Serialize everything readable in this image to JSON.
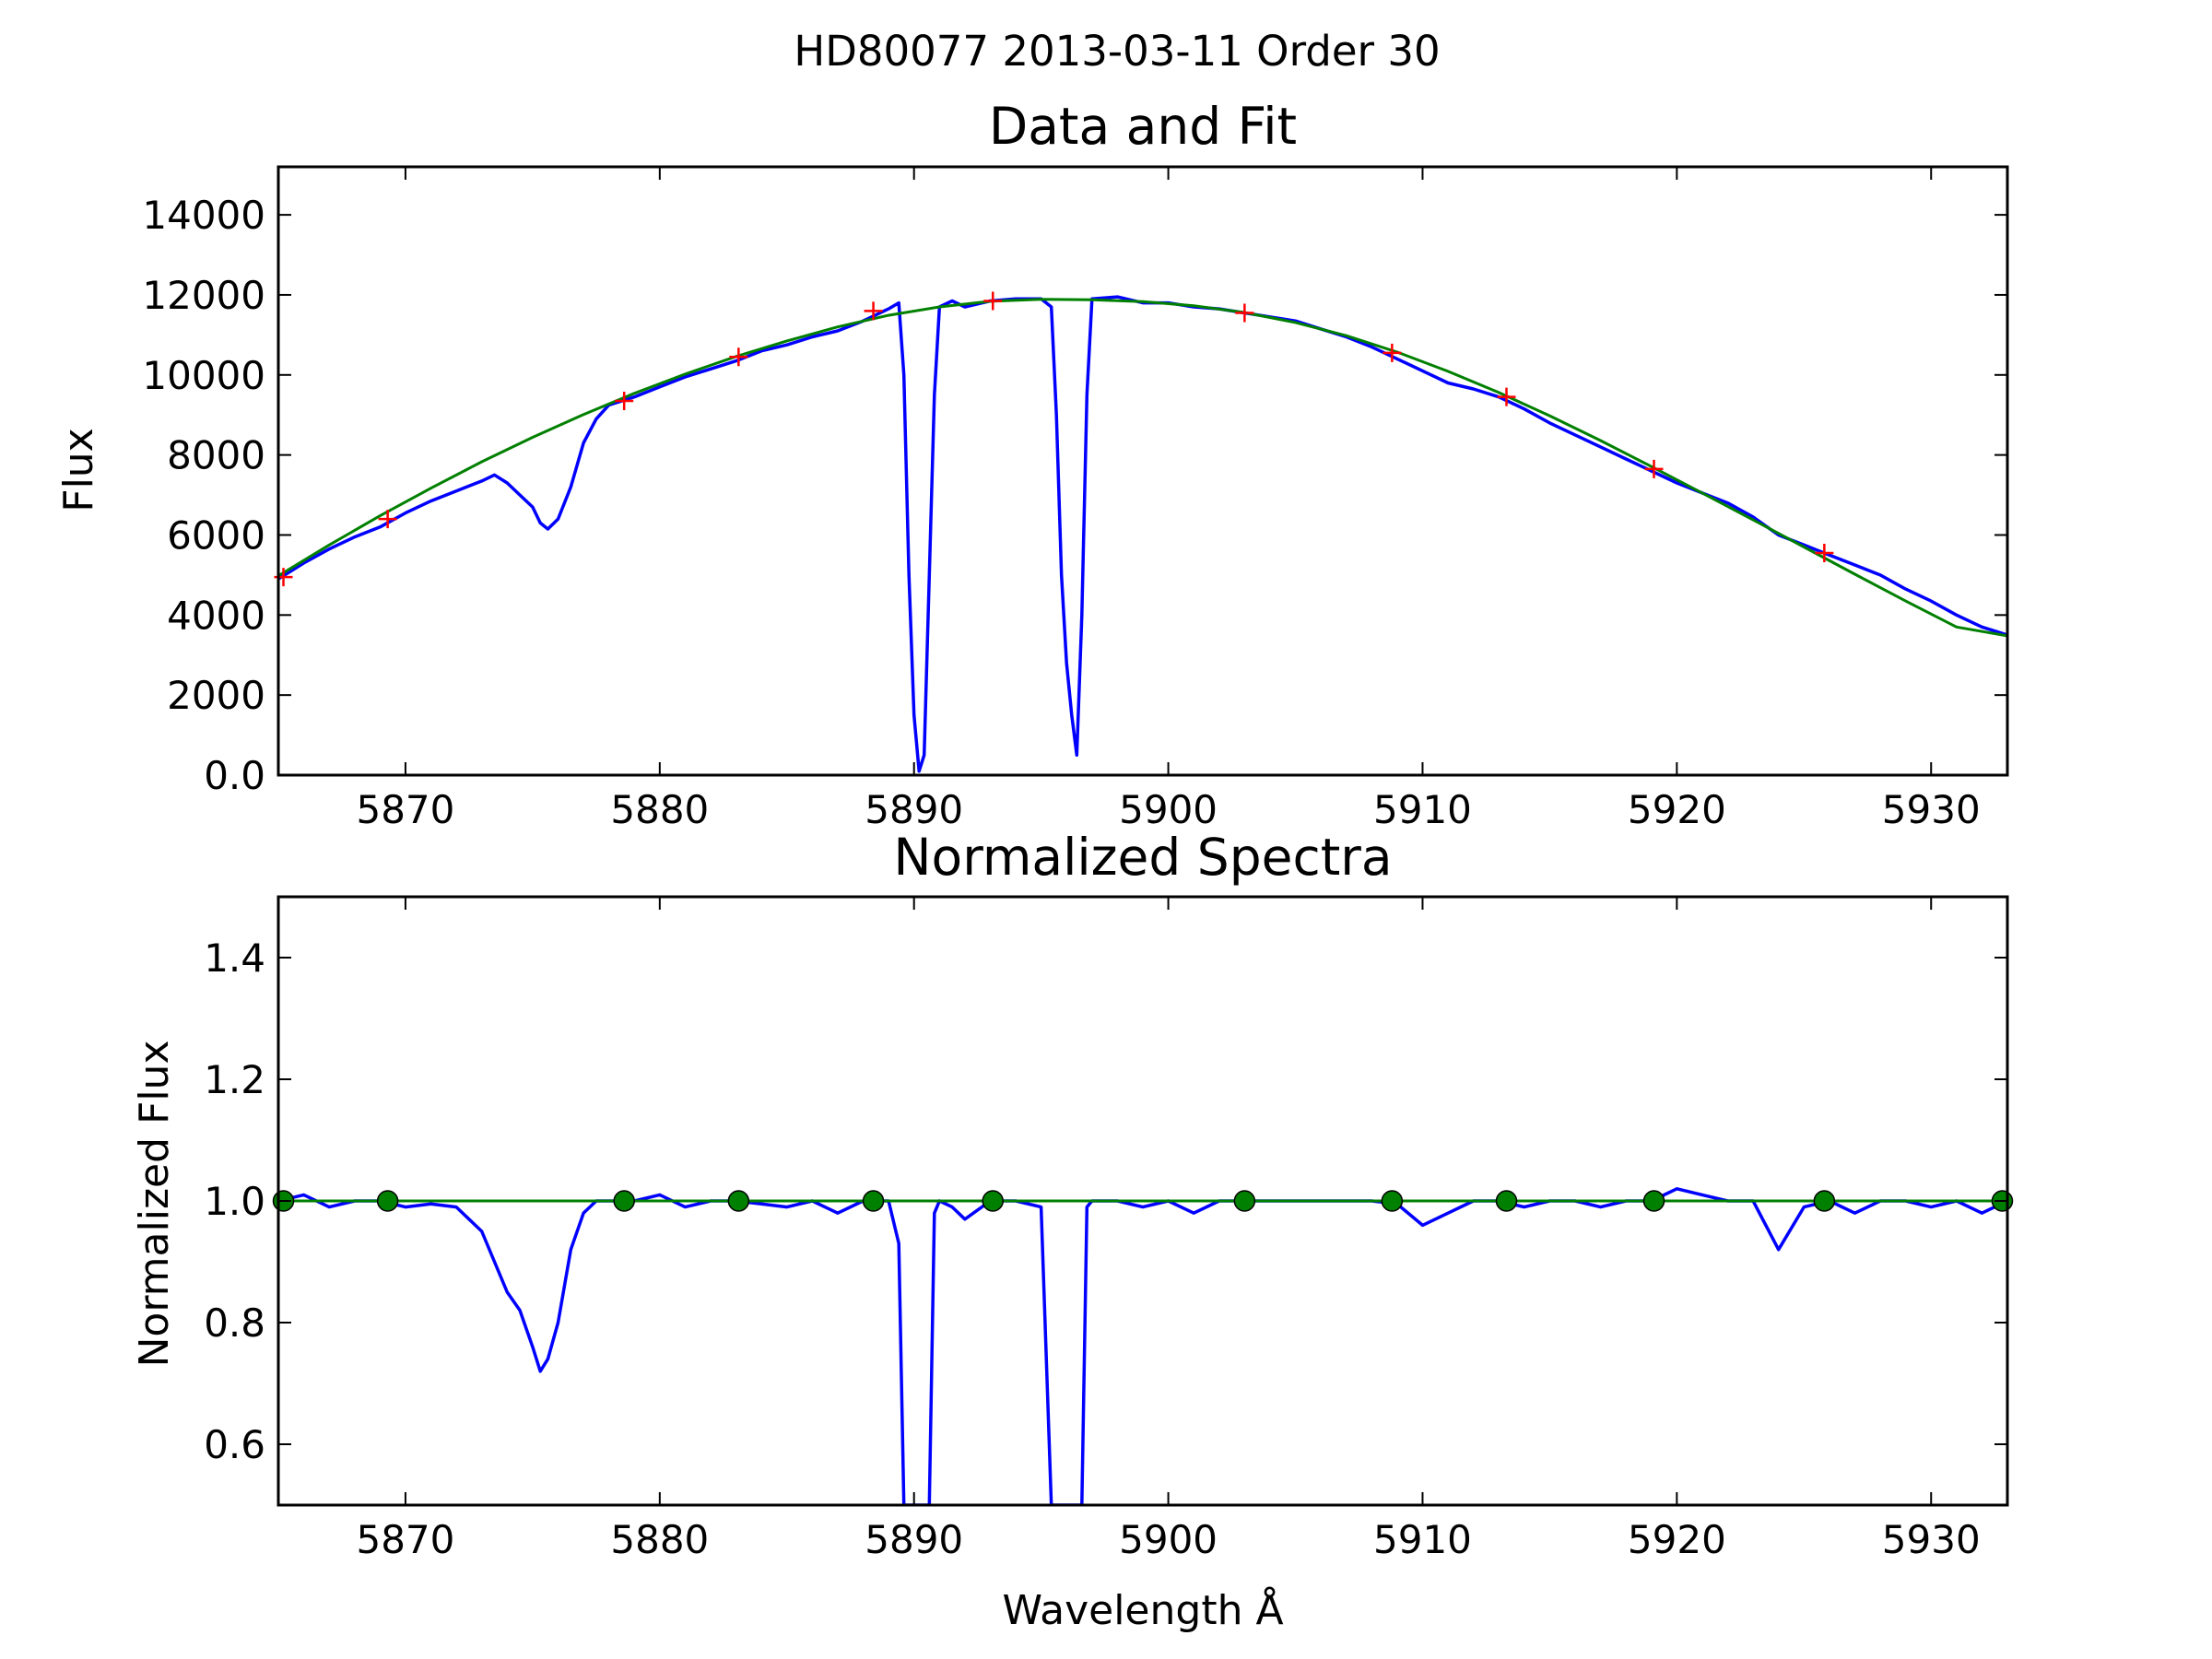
{
  "figure": {
    "suptitle": "HD80077 2013-03-11 Order 30"
  },
  "colors": {
    "spectrum": "#0000ff",
    "fit": "#008000",
    "continuum_points": "#ff0000",
    "normalized_points": "#008000"
  },
  "chart_data": [
    {
      "id": "top",
      "type": "line",
      "title": "Data and Fit",
      "xlabel": "",
      "ylabel": "Flux",
      "xlim": [
        5865,
        5933
      ],
      "ylim": [
        0,
        15200
      ],
      "xticks": [
        5870,
        5880,
        5890,
        5900,
        5910,
        5920,
        5930
      ],
      "yticks": [
        0,
        2000,
        4000,
        6000,
        8000,
        10000,
        12000,
        14000
      ],
      "grid": false,
      "series": [
        {
          "role": "spectrum",
          "x": [
            5865.0,
            5866.0,
            5867.0,
            5868.0,
            5869.0,
            5870.0,
            5871.0,
            5872.0,
            5873.0,
            5873.5,
            5874.0,
            5874.5,
            5875.0,
            5875.3,
            5875.6,
            5876.0,
            5876.5,
            5877.0,
            5877.5,
            5878.0,
            5879.0,
            5880.0,
            5881.0,
            5882.0,
            5883.0,
            5884.0,
            5885.0,
            5886.0,
            5887.0,
            5888.0,
            5888.5,
            5889.0,
            5889.4,
            5889.6,
            5889.8,
            5890.0,
            5890.2,
            5890.4,
            5890.6,
            5890.8,
            5891.0,
            5891.5,
            5892.0,
            5893.0,
            5894.0,
            5895.0,
            5895.4,
            5895.6,
            5895.8,
            5896.0,
            5896.2,
            5896.4,
            5896.6,
            5896.8,
            5897.0,
            5898.0,
            5899.0,
            5900.0,
            5901.0,
            5902.0,
            5903.0,
            5904.0,
            5905.0,
            5906.0,
            5907.0,
            5908.0,
            5909.0,
            5910.0,
            5911.0,
            5912.0,
            5913.0,
            5914.0,
            5915.0,
            5916.0,
            5917.0,
            5918.0,
            5919.0,
            5920.0,
            5921.0,
            5922.0,
            5923.0,
            5924.0,
            5925.0,
            5926.0,
            5927.0,
            5928.0,
            5929.0,
            5930.0,
            5931.0,
            5932.0,
            5933.0
          ],
          "y": [
            4900,
            5300,
            5650,
            5950,
            6200,
            6550,
            6850,
            7100,
            7350,
            7500,
            7300,
            7000,
            6700,
            6300,
            6150,
            6400,
            7200,
            8300,
            8900,
            9250,
            9450,
            9700,
            9950,
            10150,
            10350,
            10600,
            10750,
            10950,
            11100,
            11350,
            11500,
            11650,
            11800,
            10000,
            5000,
            1500,
            100,
            500,
            5000,
            9500,
            11700,
            11850,
            11700,
            11850,
            11900,
            11900,
            11700,
            9000,
            5000,
            2800,
            1500,
            500,
            4000,
            9500,
            11900,
            11950,
            11800,
            11800,
            11700,
            11650,
            11550,
            11450,
            11350,
            11150,
            10950,
            10700,
            10400,
            10100,
            9800,
            9650,
            9450,
            9150,
            8800,
            8500,
            8200,
            7900,
            7600,
            7300,
            7050,
            6800,
            6450,
            6000,
            5750,
            5500,
            5250,
            5000,
            4650,
            4350,
            4000,
            3700,
            3500
          ]
        },
        {
          "role": "fit",
          "x": [
            5865,
            5867,
            5869,
            5871,
            5873,
            5875,
            5877,
            5879,
            5881,
            5883,
            5885,
            5887,
            5889,
            5891,
            5893,
            5895,
            5897,
            5899,
            5901,
            5903,
            5905,
            5907,
            5909,
            5911,
            5913,
            5915,
            5917,
            5919,
            5921,
            5923,
            5925,
            5927,
            5929,
            5931,
            5933
          ],
          "y": [
            4980,
            5750,
            6480,
            7170,
            7830,
            8440,
            9010,
            9540,
            10020,
            10460,
            10850,
            11200,
            11490,
            11700,
            11840,
            11890,
            11880,
            11830,
            11730,
            11560,
            11310,
            10980,
            10570,
            10090,
            9560,
            8980,
            8360,
            7710,
            7050,
            6380,
            5700,
            5020,
            4350,
            3700,
            3480
          ]
        },
        {
          "role": "continuum_points",
          "x": [
            5865.2,
            5869.3,
            5878.6,
            5883.1,
            5888.4,
            5893.1,
            5903.0,
            5908.8,
            5913.3,
            5919.1,
            5925.8
          ],
          "y": [
            4950,
            6400,
            9350,
            10450,
            11600,
            11850,
            11550,
            10550,
            9450,
            7650,
            5550
          ]
        }
      ]
    },
    {
      "id": "bottom",
      "type": "line",
      "title": "Normalized Spectra",
      "xlabel": "Wavelength Å",
      "ylabel": "Normalized Flux",
      "xlim": [
        5865,
        5933
      ],
      "ylim": [
        0.5,
        1.5
      ],
      "xticks": [
        5870,
        5880,
        5890,
        5900,
        5910,
        5920,
        5930
      ],
      "yticks": [
        0.6,
        0.8,
        1.0,
        1.2,
        1.4
      ],
      "grid": false,
      "series": [
        {
          "role": "spectrum",
          "x": [
            5865.0,
            5866.0,
            5867.0,
            5868.0,
            5869.0,
            5870.0,
            5871.0,
            5872.0,
            5873.0,
            5873.5,
            5874.0,
            5874.5,
            5875.0,
            5875.3,
            5875.6,
            5876.0,
            5876.5,
            5877.0,
            5877.5,
            5878.0,
            5879.0,
            5880.0,
            5881.0,
            5882.0,
            5883.0,
            5884.0,
            5885.0,
            5886.0,
            5887.0,
            5888.0,
            5888.5,
            5889.0,
            5889.4,
            5889.6,
            5889.8,
            5890.0,
            5890.2,
            5890.4,
            5890.6,
            5890.8,
            5891.0,
            5891.5,
            5892.0,
            5893.0,
            5894.0,
            5895.0,
            5895.4,
            5895.6,
            5895.8,
            5896.0,
            5896.2,
            5896.4,
            5896.6,
            5896.8,
            5897.0,
            5898.0,
            5899.0,
            5900.0,
            5901.0,
            5902.0,
            5903.0,
            5904.0,
            5905.0,
            5906.0,
            5907.0,
            5908.0,
            5909.0,
            5910.0,
            5911.0,
            5912.0,
            5913.0,
            5914.0,
            5915.0,
            5916.0,
            5917.0,
            5918.0,
            5919.0,
            5920.0,
            5921.0,
            5922.0,
            5923.0,
            5924.0,
            5925.0,
            5926.0,
            5927.0,
            5928.0,
            5929.0,
            5930.0,
            5931.0,
            5932.0,
            5933.0
          ],
          "y": [
            1.0,
            1.01,
            0.99,
            1.0,
            1.0,
            0.99,
            0.995,
            0.99,
            0.95,
            0.9,
            0.85,
            0.82,
            0.76,
            0.72,
            0.74,
            0.8,
            0.92,
            0.98,
            1.0,
            1.0,
            1.0,
            1.01,
            0.99,
            1.0,
            1.0,
            0.995,
            0.99,
            1.0,
            0.98,
            1.0,
            1.0,
            1.0,
            0.93,
            0.5,
            0.5,
            0.5,
            0.5,
            0.5,
            0.5,
            0.98,
            1.0,
            0.99,
            0.97,
            1.0,
            1.0,
            0.99,
            0.5,
            0.5,
            0.5,
            0.5,
            0.5,
            0.5,
            0.5,
            0.99,
            1.0,
            1.0,
            0.99,
            1.0,
            0.98,
            1.0,
            1.0,
            1.0,
            1.0,
            1.0,
            1.0,
            1.0,
            0.995,
            0.96,
            0.98,
            1.0,
            1.0,
            0.99,
            1.0,
            1.0,
            0.99,
            1.0,
            1.0,
            1.02,
            1.01,
            1.0,
            1.0,
            0.92,
            0.99,
            1.0,
            0.98,
            1.0,
            1.0,
            0.99,
            1.0,
            0.98,
            1.0
          ]
        },
        {
          "role": "fit",
          "x": [
            5865,
            5933
          ],
          "y": [
            1.0,
            1.0
          ]
        },
        {
          "role": "normalized_points",
          "x": [
            5865.2,
            5869.3,
            5878.6,
            5883.1,
            5888.4,
            5893.1,
            5903.0,
            5908.8,
            5913.3,
            5919.1,
            5925.8,
            5932.8
          ],
          "y": [
            1.0,
            1.0,
            1.0,
            1.0,
            1.0,
            1.0,
            1.0,
            1.0,
            1.0,
            1.0,
            1.0,
            1.0
          ]
        }
      ]
    }
  ]
}
